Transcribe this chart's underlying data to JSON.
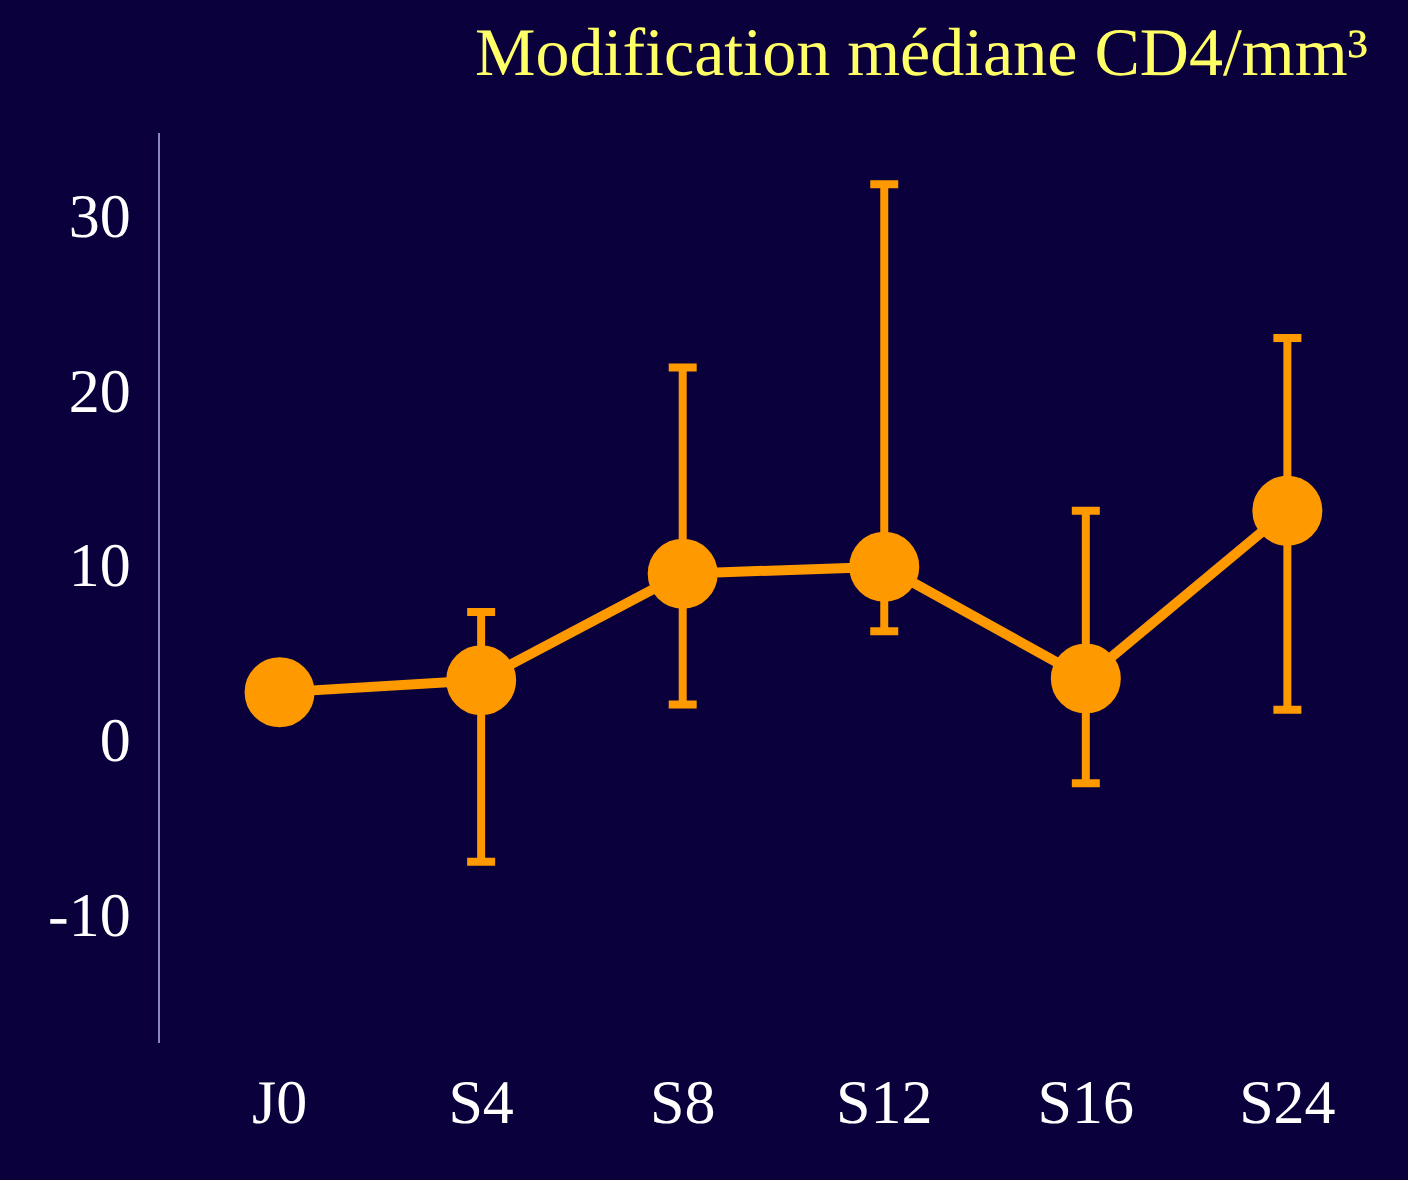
{
  "chart_data": {
    "type": "line",
    "title": "Modification médiane CD4/mm³",
    "categories": [
      "J0",
      "S4",
      "S8",
      "S12",
      "S16",
      "S24"
    ],
    "series": [
      {
        "color": "#ff9900",
        "values": [
          3.0,
          3.7,
          9.8,
          10.2,
          3.8,
          13.4
        ],
        "errors": [
          null,
          [
            -6.7,
            7.6
          ],
          [
            2.3,
            21.6
          ],
          [
            6.5,
            32.1
          ],
          [
            -2.2,
            13.4
          ],
          [
            2.0,
            23.3
          ]
        ]
      }
    ],
    "ylim": [
      -17,
      35
    ],
    "yticks": [
      -10,
      0,
      10,
      20,
      30
    ],
    "grid": false,
    "legend": false,
    "marker": "circle",
    "line_style": "solid"
  }
}
